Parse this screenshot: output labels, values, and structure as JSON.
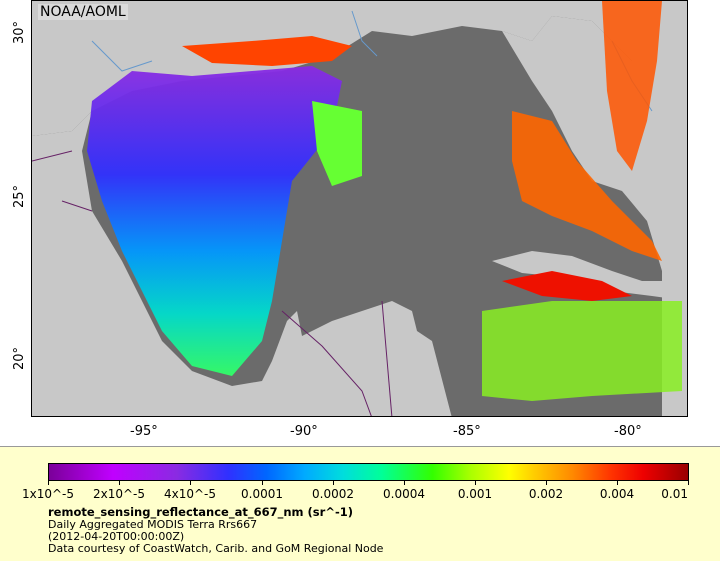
{
  "watermark": "NOAA/AOML",
  "y_ticks": [
    "30°",
    "25°",
    "20°"
  ],
  "x_ticks": [
    "-95°",
    "-90°",
    "-85°",
    "-80°"
  ],
  "colorbar": {
    "labels": [
      "1x10^-5",
      "2x10^-5",
      "4x10^-5",
      "0.0001",
      "0.0002",
      "0.0004",
      "0.001",
      "0.002",
      "0.004",
      "0.01"
    ],
    "colors": [
      "#7a0099",
      "#c000ff",
      "#3030ff",
      "#00aaff",
      "#00ff99",
      "#aaff00",
      "#ffcc00",
      "#ff3300",
      "#ee0000",
      "#990000"
    ]
  },
  "info": {
    "variable": "remote_sensing_reflectance_at_667_nm (sr^-1)",
    "description": "Daily Aggregated MODIS Terra Rrs667",
    "timestamp": "(2012-04-20T00:00:00Z)",
    "credit": "Data courtesy of CoastWatch, Carib. and GoM Regional Node"
  },
  "colors": {
    "land": "#c8c8c8",
    "water_nodata": "#6b6b6b",
    "legend_bg": "#ffffcc"
  }
}
